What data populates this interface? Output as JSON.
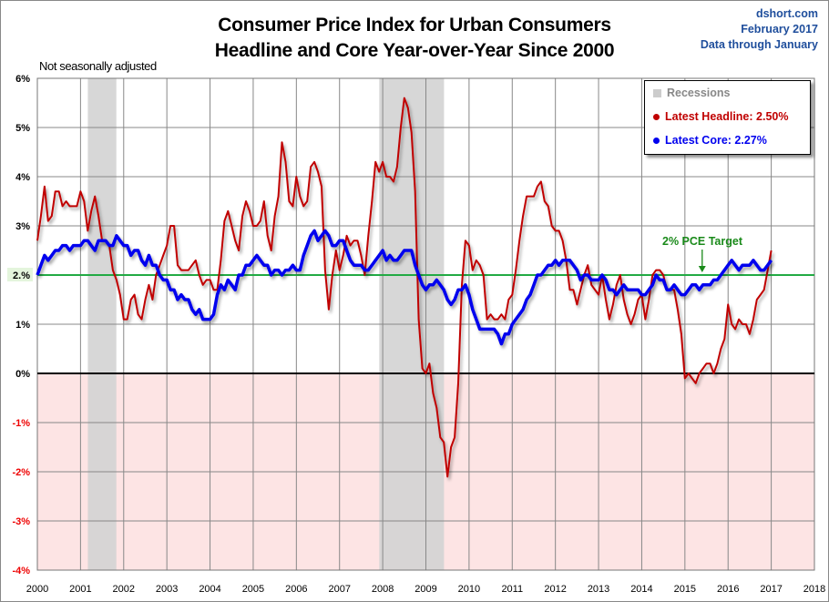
{
  "header": {
    "title_line1": "Consumer Price Index for Urban Consumers",
    "title_line2": "Headline and Core Year-over-Year Since 2000",
    "source": "dshort.com",
    "date": "February 2017",
    "data_through": "Data through January",
    "note": "Not seasonally adjusted"
  },
  "legend": {
    "recessions": "Recessions",
    "headline": "Latest Headline:  2.50%",
    "core": "Latest Core:  2.27%"
  },
  "annotation": {
    "pce_target": "2% PCE Target"
  },
  "colors": {
    "headline": "#c00000",
    "core": "#0000ee",
    "target": "#22aa44",
    "recession": "#d3d3d3",
    "negative_zone": "#fde4e4"
  },
  "chart_data": {
    "type": "line",
    "title": "Consumer Price Index for Urban Consumers - Headline and Core Year-over-Year Since 2000",
    "xlabel": "",
    "ylabel": "",
    "xlim": [
      2000,
      2018
    ],
    "ylim": [
      -4,
      6
    ],
    "grid": true,
    "legend_position": "top-right",
    "x_ticks": [
      "2000",
      "2001",
      "2002",
      "2003",
      "2004",
      "2005",
      "2006",
      "2007",
      "2008",
      "2009",
      "2010",
      "2011",
      "2012",
      "2013",
      "2014",
      "2015",
      "2016",
      "2017",
      "2018"
    ],
    "y_ticks": [
      "6%",
      "5%",
      "4%",
      "3%",
      "2.%",
      "1%",
      "0%",
      "-1%",
      "-2%",
      "-3%",
      "-4%"
    ],
    "y_tick_values": [
      6,
      5,
      4,
      3,
      2,
      1,
      0,
      -1,
      -2,
      -3,
      -4
    ],
    "x_start": "2000-01",
    "x_step": "monthly",
    "target_line": {
      "value": 2,
      "label": "2% PCE Target",
      "arrow_x": 2015.4
    },
    "recessions": [
      [
        2001.17,
        2001.83
      ],
      [
        2007.92,
        2009.42
      ]
    ],
    "series": [
      {
        "name": "Headline CPI YoY",
        "latest": 2.5,
        "values": [
          2.7,
          3.2,
          3.8,
          3.1,
          3.2,
          3.7,
          3.7,
          3.4,
          3.5,
          3.4,
          3.4,
          3.4,
          3.7,
          3.5,
          2.9,
          3.3,
          3.6,
          3.2,
          2.7,
          2.7,
          2.6,
          2.1,
          1.9,
          1.6,
          1.1,
          1.1,
          1.5,
          1.6,
          1.2,
          1.1,
          1.5,
          1.8,
          1.5,
          2.0,
          2.2,
          2.4,
          2.6,
          3.0,
          3.0,
          2.2,
          2.1,
          2.1,
          2.1,
          2.2,
          2.3,
          2.0,
          1.8,
          1.9,
          1.9,
          1.7,
          1.7,
          2.3,
          3.1,
          3.3,
          3.0,
          2.7,
          2.5,
          3.2,
          3.5,
          3.3,
          3.0,
          3.0,
          3.1,
          3.5,
          2.8,
          2.5,
          3.2,
          3.6,
          4.7,
          4.3,
          3.5,
          3.4,
          4.0,
          3.6,
          3.4,
          3.5,
          4.2,
          4.3,
          4.1,
          3.8,
          2.1,
          1.3,
          2.0,
          2.5,
          2.1,
          2.4,
          2.8,
          2.6,
          2.7,
          2.7,
          2.4,
          2.0,
          2.8,
          3.5,
          4.3,
          4.1,
          4.3,
          4.0,
          4.0,
          3.9,
          4.2,
          5.0,
          5.6,
          5.4,
          4.9,
          3.7,
          1.1,
          0.1,
          0.0,
          0.2,
          -0.4,
          -0.7,
          -1.3,
          -1.4,
          -2.1,
          -1.5,
          -1.3,
          -0.2,
          1.8,
          2.7,
          2.6,
          2.1,
          2.3,
          2.2,
          2.0,
          1.1,
          1.2,
          1.1,
          1.1,
          1.2,
          1.1,
          1.5,
          1.6,
          2.1,
          2.7,
          3.2,
          3.6,
          3.6,
          3.6,
          3.8,
          3.9,
          3.5,
          3.4,
          3.0,
          2.9,
          2.9,
          2.7,
          2.3,
          1.7,
          1.7,
          1.4,
          1.7,
          2.0,
          2.2,
          1.8,
          1.7,
          1.6,
          2.0,
          1.5,
          1.1,
          1.4,
          1.8,
          2.0,
          1.5,
          1.2,
          1.0,
          1.2,
          1.5,
          1.6,
          1.1,
          1.5,
          2.0,
          2.1,
          2.1,
          2.0,
          1.7,
          1.7,
          1.7,
          1.3,
          0.8,
          -0.1,
          0.0,
          -0.1,
          -0.2,
          0.0,
          0.1,
          0.2,
          0.2,
          0.0,
          0.2,
          0.5,
          0.7,
          1.4,
          1.0,
          0.9,
          1.1,
          1.0,
          1.0,
          0.8,
          1.1,
          1.5,
          1.6,
          1.7,
          2.1,
          2.5
        ]
      },
      {
        "name": "Core CPI YoY",
        "latest": 2.27,
        "values": [
          2.0,
          2.2,
          2.4,
          2.3,
          2.4,
          2.5,
          2.5,
          2.6,
          2.6,
          2.5,
          2.6,
          2.6,
          2.6,
          2.7,
          2.7,
          2.6,
          2.5,
          2.7,
          2.7,
          2.7,
          2.6,
          2.6,
          2.8,
          2.7,
          2.6,
          2.6,
          2.4,
          2.5,
          2.5,
          2.3,
          2.2,
          2.4,
          2.2,
          2.2,
          2.0,
          1.9,
          1.9,
          1.7,
          1.7,
          1.5,
          1.6,
          1.5,
          1.5,
          1.3,
          1.2,
          1.3,
          1.1,
          1.1,
          1.1,
          1.2,
          1.6,
          1.8,
          1.7,
          1.9,
          1.8,
          1.7,
          2.0,
          2.0,
          2.2,
          2.2,
          2.3,
          2.4,
          2.3,
          2.2,
          2.2,
          2.0,
          2.1,
          2.1,
          2.0,
          2.1,
          2.1,
          2.2,
          2.1,
          2.1,
          2.4,
          2.6,
          2.8,
          2.9,
          2.7,
          2.8,
          2.9,
          2.8,
          2.6,
          2.6,
          2.7,
          2.7,
          2.5,
          2.3,
          2.2,
          2.2,
          2.2,
          2.1,
          2.1,
          2.2,
          2.3,
          2.4,
          2.5,
          2.3,
          2.4,
          2.3,
          2.3,
          2.4,
          2.5,
          2.5,
          2.5,
          2.2,
          2.0,
          1.8,
          1.7,
          1.8,
          1.8,
          1.9,
          1.8,
          1.7,
          1.5,
          1.4,
          1.5,
          1.7,
          1.7,
          1.8,
          1.6,
          1.3,
          1.1,
          0.9,
          0.9,
          0.9,
          0.9,
          0.9,
          0.8,
          0.6,
          0.8,
          0.8,
          1.0,
          1.1,
          1.2,
          1.3,
          1.5,
          1.6,
          1.8,
          2.0,
          2.0,
          2.1,
          2.2,
          2.2,
          2.3,
          2.2,
          2.3,
          2.3,
          2.3,
          2.2,
          2.1,
          1.9,
          2.0,
          2.0,
          1.9,
          1.9,
          1.9,
          2.0,
          1.9,
          1.7,
          1.7,
          1.6,
          1.7,
          1.8,
          1.7,
          1.7,
          1.7,
          1.7,
          1.6,
          1.6,
          1.7,
          1.8,
          2.0,
          1.9,
          1.9,
          1.7,
          1.7,
          1.8,
          1.7,
          1.6,
          1.6,
          1.7,
          1.8,
          1.8,
          1.7,
          1.8,
          1.8,
          1.8,
          1.9,
          1.9,
          2.0,
          2.1,
          2.2,
          2.3,
          2.2,
          2.1,
          2.2,
          2.2,
          2.2,
          2.3,
          2.2,
          2.1,
          2.1,
          2.2,
          2.3
        ]
      }
    ]
  }
}
